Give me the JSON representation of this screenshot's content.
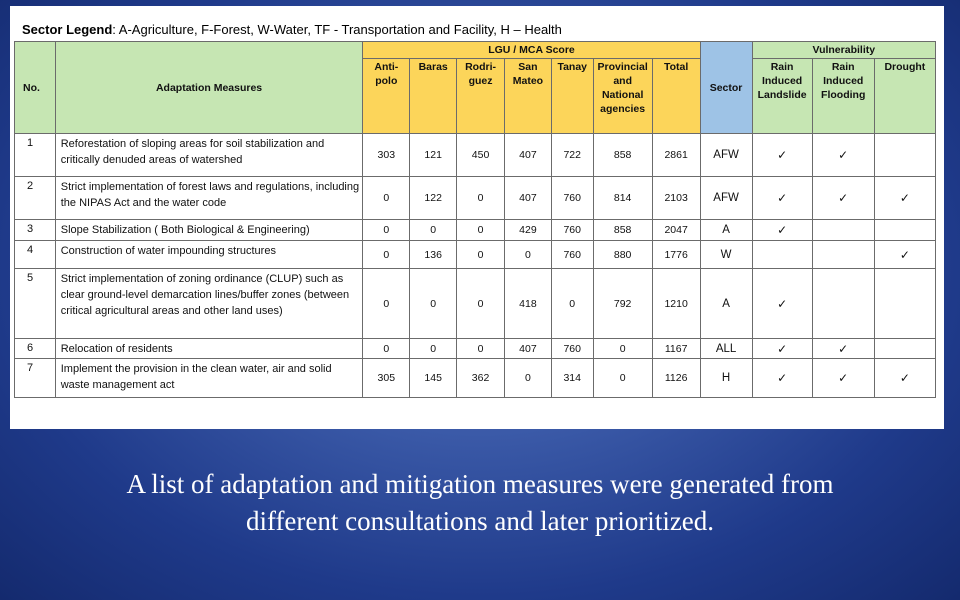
{
  "legend": {
    "label": "Sector Legend",
    "text": ":  A-Agriculture, F-Forest, W-Water, TF - Transportation and Facility, H – Health"
  },
  "table": {
    "headers": {
      "no": "No.",
      "measures": "Adaptation Measures",
      "lgu_group": "LGU / MCA Score",
      "lgu_cols": [
        "Anti-\npolo",
        "Baras",
        "Rodri-\nguez",
        "San\nMateo",
        "Tanay",
        "Provincial\nand\nNational\nagencies",
        "Total"
      ],
      "sector": "Sector",
      "vul_group": "Vulnerability",
      "vul_cols": [
        "Rain\nInduced\nLandslide",
        "Rain\nInduced\nFlooding",
        "Drought"
      ]
    },
    "rows": [
      {
        "no": "1",
        "measure": "Reforestation of sloping areas for soil stabilization and critically denuded areas of watershed",
        "scores": [
          "303",
          "121",
          "450",
          "407",
          "722",
          "858",
          "2861"
        ],
        "sector": "AFW",
        "checks": [
          "✓",
          "✓",
          ""
        ]
      },
      {
        "no": "2",
        "measure": "Strict implementation of forest laws and regulations, including the NIPAS Act and the water code",
        "scores": [
          "0",
          "122",
          "0",
          "407",
          "760",
          "814",
          "2103"
        ],
        "sector": "AFW",
        "checks": [
          "✓",
          "✓",
          "✓"
        ]
      },
      {
        "no": "3",
        "measure": "Slope Stabilization ( Both Biological & Engineering)",
        "scores": [
          "0",
          "0",
          "0",
          "429",
          "760",
          "858",
          "2047"
        ],
        "sector": "A",
        "checks": [
          "✓",
          "",
          ""
        ]
      },
      {
        "no": "4",
        "measure": "Construction of water impounding structures",
        "scores": [
          "0",
          "136",
          "0",
          "0",
          "760",
          "880",
          "1776"
        ],
        "sector": "W",
        "checks": [
          "",
          "",
          "✓"
        ]
      },
      {
        "no": "5",
        "measure": "Strict implementation of zoning ordinance (CLUP) such as clear ground-level demarcation lines/buffer zones (between critical agricultural areas and other land uses)",
        "scores": [
          "0",
          "0",
          "0",
          "418",
          "0",
          "792",
          "1210"
        ],
        "sector": "A",
        "checks": [
          "✓",
          "",
          ""
        ]
      },
      {
        "no": "6",
        "measure": "Relocation of residents",
        "scores": [
          "0",
          "0",
          "0",
          "407",
          "760",
          "0",
          "1167"
        ],
        "sector": "ALL",
        "checks": [
          "✓",
          "✓",
          ""
        ]
      },
      {
        "no": "7",
        "measure": "Implement the provision in the clean water, air and solid waste management act",
        "scores": [
          "305",
          "145",
          "362",
          "0",
          "314",
          "0",
          "1126"
        ],
        "sector": "H",
        "checks": [
          "✓",
          "✓",
          "✓"
        ]
      }
    ]
  },
  "caption": {
    "line1": "A list of adaptation and mitigation measures were generated from",
    "line2": "different consultations and later prioritized."
  },
  "colors": {
    "header_green": "#c6e6b3",
    "header_yellow": "#fcd55a",
    "header_blue": "#9ec3e6",
    "slide_background": "#2e4c9c"
  }
}
